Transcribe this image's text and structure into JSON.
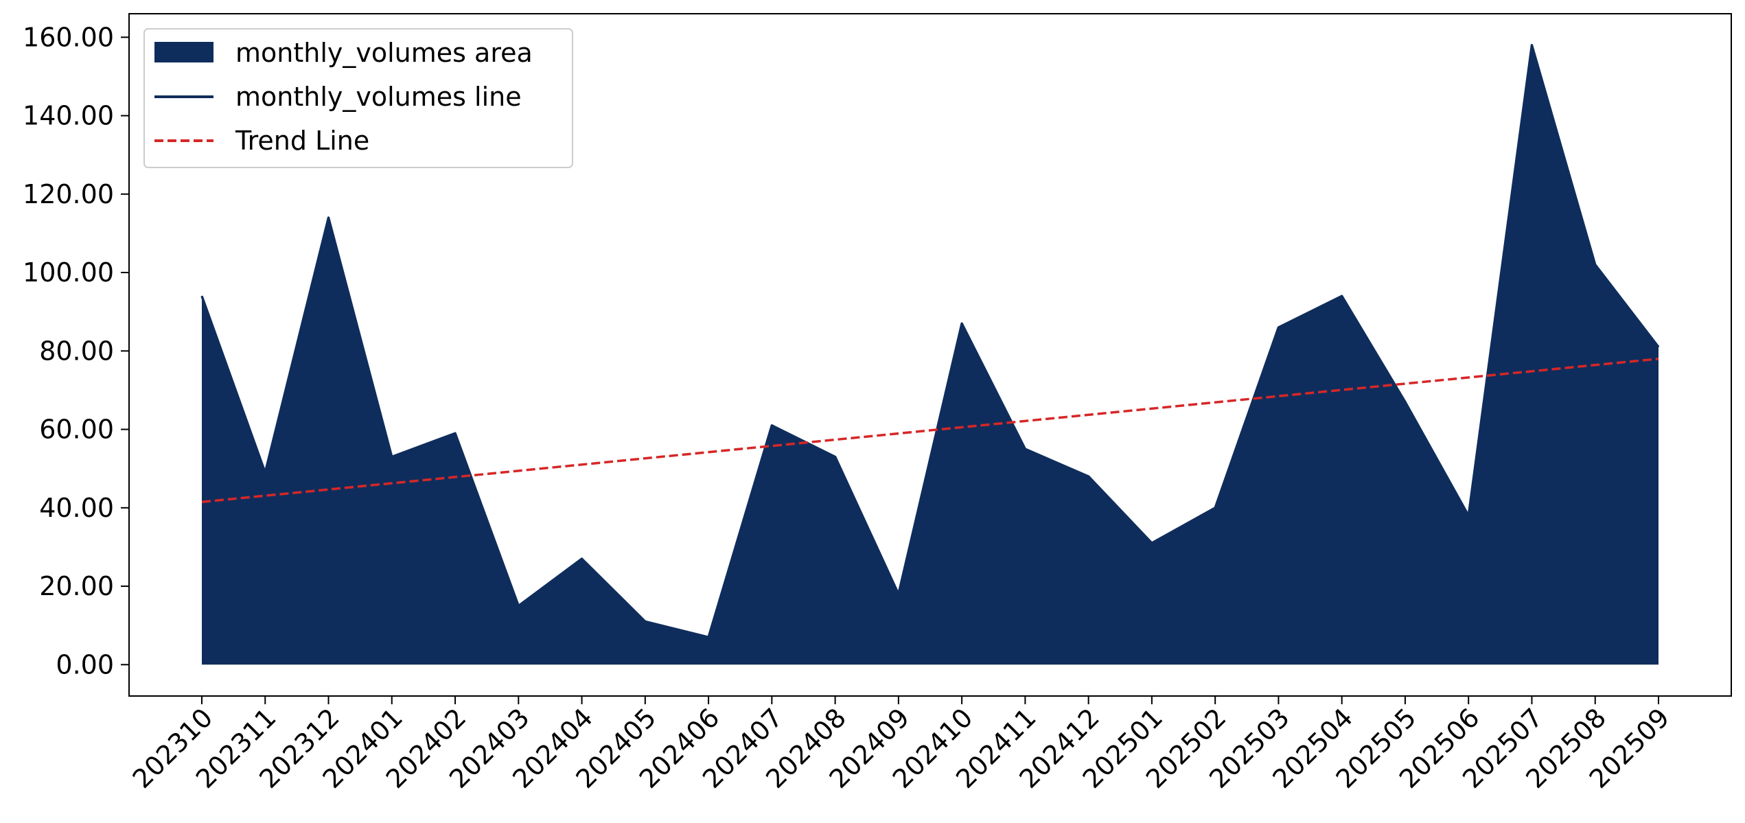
{
  "chart_data": {
    "type": "area",
    "categories": [
      "202310",
      "202311",
      "202312",
      "202401",
      "202402",
      "202403",
      "202404",
      "202405",
      "202406",
      "202407",
      "202408",
      "202409",
      "202410",
      "202411",
      "202412",
      "202501",
      "202502",
      "202503",
      "202504",
      "202505",
      "202506",
      "202507",
      "202508",
      "202509"
    ],
    "series": [
      {
        "name": "monthly_volumes area",
        "kind": "area",
        "color": "#0f2d5c",
        "values": [
          94,
          49,
          114,
          53,
          59,
          15,
          27,
          11,
          7,
          61,
          53,
          18,
          87,
          55,
          48,
          31,
          40,
          86,
          94,
          67,
          38,
          158,
          102,
          81
        ]
      },
      {
        "name": "monthly_volumes line",
        "kind": "line",
        "color": "#0f2d5c",
        "values": [
          94,
          49,
          114,
          53,
          59,
          15,
          27,
          11,
          7,
          61,
          53,
          18,
          87,
          55,
          48,
          31,
          40,
          86,
          94,
          67,
          38,
          158,
          102,
          81
        ]
      },
      {
        "name": "Trend Line",
        "kind": "line",
        "style": "dashed",
        "color": "#d62728",
        "start": 41.5,
        "end": 78
      }
    ],
    "yticks": [
      "0.00",
      "20.00",
      "40.00",
      "60.00",
      "80.00",
      "100.00",
      "120.00",
      "140.00",
      "160.00"
    ],
    "ylim": [
      -8,
      166
    ],
    "xlabel": "",
    "ylabel": "",
    "title": "",
    "grid": false,
    "legend_position": "top-left"
  }
}
